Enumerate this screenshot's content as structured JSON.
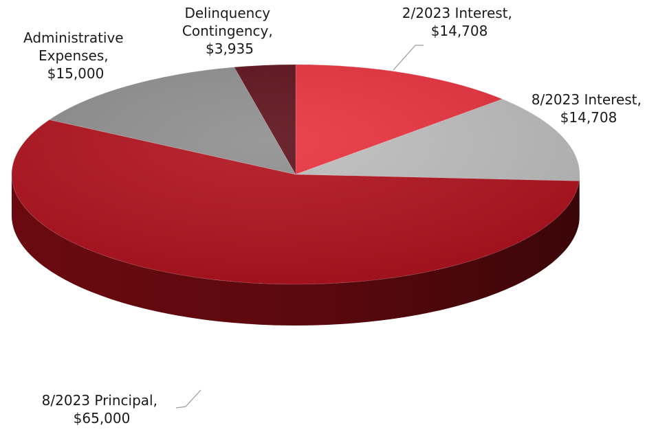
{
  "chart_data": {
    "type": "pie",
    "title": "",
    "slices": [
      {
        "label": "2/2023 Interest,",
        "value": 14708,
        "value_text": "$14,708",
        "color": "#E8303C",
        "side_color": "#9B1018"
      },
      {
        "label": "8/2023 Interest,",
        "value": 14708,
        "value_text": "$14,708",
        "color": "#BDBDBD",
        "side_color": "#6E6E6E"
      },
      {
        "label": "8/2023 Principal,",
        "value": 65000,
        "value_text": "$65,000",
        "color": "#B0101C",
        "side_color": "#6A0A10"
      },
      {
        "label": "Administrative Expenses,",
        "value": 15000,
        "value_text": "$15,000",
        "color": "#8E8E8E",
        "side_color": "#555555"
      },
      {
        "label": "Delinquency Contingency,",
        "value": 3935,
        "value_text": "$3,935",
        "color": "#5C0E18",
        "side_color": "#3A070E"
      }
    ]
  }
}
